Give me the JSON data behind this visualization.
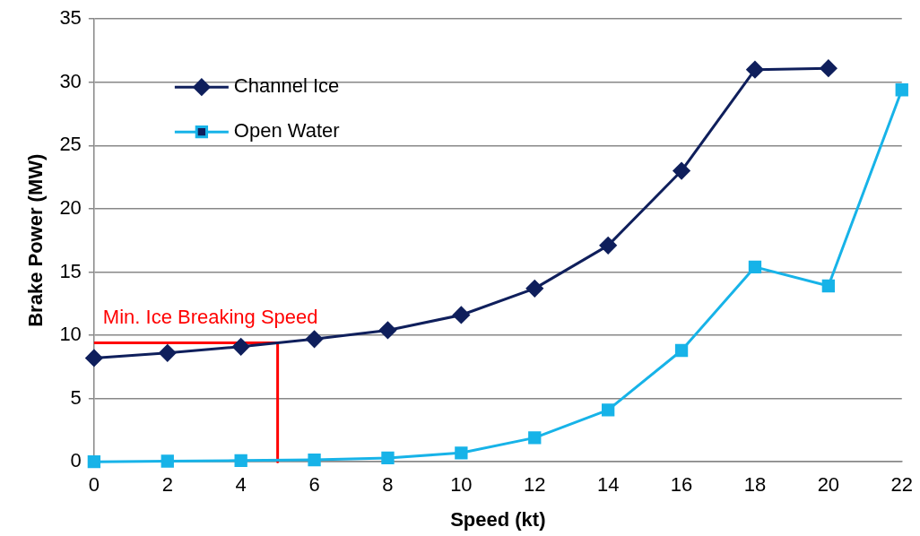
{
  "chart_data": {
    "type": "line",
    "xlabel": "Speed (kt)",
    "ylabel": "Brake Power (MW)",
    "xlim": [
      0,
      22
    ],
    "xticks": [
      0,
      2,
      4,
      6,
      8,
      10,
      12,
      14,
      16,
      18,
      20,
      22
    ],
    "ylim": [
      0,
      35
    ],
    "yticks": [
      0,
      5,
      10,
      15,
      20,
      25,
      30,
      35
    ],
    "grid": "y",
    "legend": "top left",
    "line_style": "solid",
    "series": [
      {
        "name": "Channel Ice",
        "color": "#0f1f5c",
        "marker": "diamond",
        "x": [
          0,
          2,
          4,
          6,
          8,
          10,
          12,
          14,
          16,
          18,
          20
        ],
        "values": [
          8.2,
          8.6,
          9.1,
          9.7,
          10.4,
          11.6,
          13.7,
          17.1,
          23.0,
          31.0,
          31.1
        ]
      },
      {
        "name": "Open Water",
        "color": "#17b3e8",
        "marker": "square",
        "x": [
          0,
          2,
          4,
          6,
          8,
          10,
          12,
          14,
          16,
          18,
          20,
          22
        ],
        "values": [
          0,
          0.05,
          0.1,
          0.15,
          0.3,
          0.7,
          1.9,
          4.1,
          8.8,
          15.4,
          13.9,
          29.4
        ]
      },
      {
        "color": "#ff0000",
        "marker": "none",
        "x": [
          0,
          5,
          5
        ],
        "values": [
          9.4,
          9.4,
          0
        ]
      }
    ],
    "annotations": [
      {
        "text": "Min. Ice Breaking Speed",
        "x": 0,
        "y": 9.4
      }
    ]
  }
}
